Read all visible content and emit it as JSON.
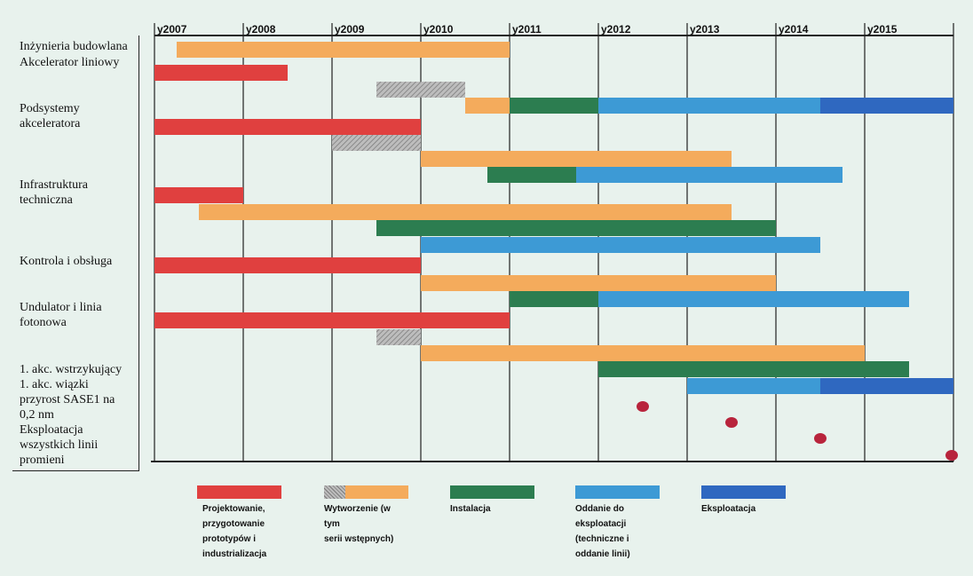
{
  "colors": {
    "design": "#e0403f",
    "manufacture": "#f4ab5c",
    "prefab": "#bdbdbd",
    "install": "#2c7d50",
    "commission": "#3d9ad5",
    "operate": "#2f68c0",
    "milestone": "#b8243c"
  },
  "rows": [
    {
      "label": "Inżynieria budowlana"
    },
    {
      "label": "Akcelerator liniowy"
    },
    {
      "label": "Podsystemy\nakceleratora"
    },
    {
      "label": "Infrastruktura\ntechniczna"
    },
    {
      "label": "Kontrola i obsługa"
    },
    {
      "label": "Undulator i linia\nfotonowa"
    },
    {
      "label": "1. akc. wstrzykujący\n1. akc. wiązki\nprzyrost SASE1 na\n0,2 nm\nEksploatacja\nwszystkich linii\npromieni"
    }
  ],
  "legend": [
    {
      "key": "design",
      "label": "Projektowanie,\nprzygotowanie\nprototypów i\nindustrializacja"
    },
    {
      "key": "manufacture",
      "label": "Wytworzenie (w tym\nserii wstępnych)"
    },
    {
      "key": "install",
      "label": "Instalacja"
    },
    {
      "key": "commission",
      "label": "Oddanie do\neksploatacji\n(techniczne i\noddanie linii)"
    },
    {
      "key": "operate",
      "label": "Eksploatacja"
    }
  ],
  "chart_data": {
    "type": "gantt",
    "title": "",
    "x_ticks": [
      "y2007",
      "y2008",
      "y2009",
      "y2010",
      "y2011",
      "y2012",
      "y2013",
      "y2014",
      "y2015"
    ],
    "xlim": [
      2007,
      2016
    ],
    "tasks": [
      {
        "row": 0,
        "phase": "manufacture",
        "start": 2007.25,
        "end": 2011.0
      },
      {
        "row": 1,
        "phase": "design",
        "start": 2007.0,
        "end": 2008.5
      },
      {
        "row": 1,
        "phase": "prefab",
        "start": 2009.5,
        "end": 2010.5
      },
      {
        "row": 1,
        "phase": "manufacture",
        "start": 2010.5,
        "end": 2012.5
      },
      {
        "row": 1,
        "phase": "install",
        "start": 2011.0,
        "end": 2013.0
      },
      {
        "row": 1,
        "phase": "commission",
        "start": 2012.0,
        "end": 2014.5
      },
      {
        "row": 1,
        "phase": "operate",
        "start": 2014.5,
        "end": 2016.0
      },
      {
        "row": 2,
        "phase": "design",
        "start": 2007.0,
        "end": 2010.0
      },
      {
        "row": 2,
        "phase": "prefab",
        "start": 2009.0,
        "end": 2010.0
      },
      {
        "row": 2,
        "phase": "manufacture",
        "start": 2010.0,
        "end": 2013.5
      },
      {
        "row": 2,
        "phase": "install",
        "start": 2010.75,
        "end": 2014.5
      },
      {
        "row": 2,
        "phase": "commission",
        "start": 2011.75,
        "end": 2014.75
      },
      {
        "row": 3,
        "phase": "design",
        "start": 2007.0,
        "end": 2008.0
      },
      {
        "row": 3,
        "phase": "manufacture",
        "start": 2007.5,
        "end": 2013.5
      },
      {
        "row": 3,
        "phase": "install",
        "start": 2009.5,
        "end": 2014.0
      },
      {
        "row": 3,
        "phase": "commission",
        "start": 2010.0,
        "end": 2014.5
      },
      {
        "row": 4,
        "phase": "design",
        "start": 2007.0,
        "end": 2010.0
      },
      {
        "row": 4,
        "phase": "manufacture",
        "start": 2010.0,
        "end": 2014.0
      },
      {
        "row": 4,
        "phase": "install",
        "start": 2011.0,
        "end": 2015.0
      },
      {
        "row": 4,
        "phase": "commission",
        "start": 2012.0,
        "end": 2015.5
      },
      {
        "row": 5,
        "phase": "design",
        "start": 2007.0,
        "end": 2011.0
      },
      {
        "row": 5,
        "phase": "prefab",
        "start": 2009.5,
        "end": 2010.0
      },
      {
        "row": 5,
        "phase": "manufacture",
        "start": 2010.0,
        "end": 2015.0
      },
      {
        "row": 5,
        "phase": "install",
        "start": 2012.0,
        "end": 2015.5
      },
      {
        "row": 5,
        "phase": "commission",
        "start": 2013.0,
        "end": 2016.0
      },
      {
        "row": 5,
        "phase": "operate",
        "start": 2014.5,
        "end": 2016.0
      }
    ],
    "milestones": [
      {
        "label": "1. akc. wstrzykujący",
        "x": 2012.5
      },
      {
        "label": "1. akc. wiązki",
        "x": 2013.5
      },
      {
        "label": "przyrost SASE1 na 0,2 nm",
        "x": 2014.5
      },
      {
        "label": "Eksploatacja wszystkich linii promieni",
        "x": 2016.0
      }
    ]
  }
}
